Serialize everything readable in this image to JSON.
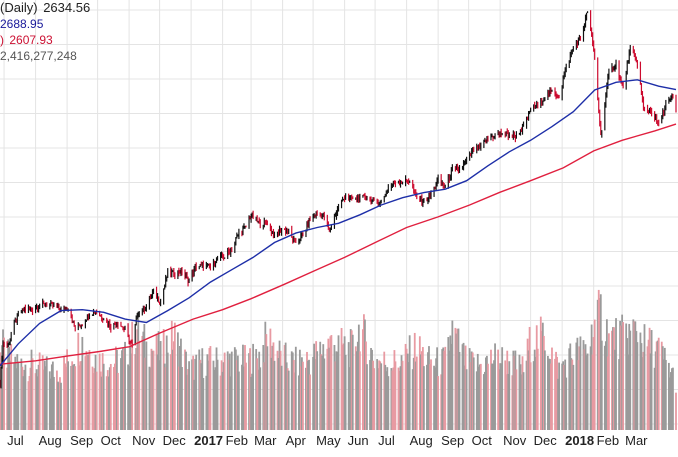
{
  "legend": {
    "price_label": "(Daily)",
    "price_value": "2634.56",
    "ma50_label": "",
    "ma50_value": "2688.95",
    "ma200_label": ")",
    "ma200_value": "2607.93",
    "volume_value": "2,416,277,248"
  },
  "colors": {
    "price_up": "#111111",
    "price_down": "#cc0a2e",
    "ma50": "#1e2fa8",
    "ma200": "#e0203f",
    "volume_up": "#9a9a9a",
    "volume_down": "#e89aa2",
    "grid": "#e4e4e4"
  },
  "chart_data": [
    {
      "type": "line",
      "title": "",
      "series": [
        {
          "name": "Daily",
          "style": "ohlc-bars",
          "points": [
            [
              "2016-06-27",
              2000
            ],
            [
              "2016-06-30",
              2092
            ],
            [
              "2016-07-05",
              2088
            ],
            [
              "2016-07-11",
              2137
            ],
            [
              "2016-07-15",
              2162
            ],
            [
              "2016-07-22",
              2175
            ],
            [
              "2016-07-29",
              2173
            ],
            [
              "2016-08-05",
              2182
            ],
            [
              "2016-08-12",
              2184
            ],
            [
              "2016-08-19",
              2183
            ],
            [
              "2016-08-26",
              2169
            ],
            [
              "2016-09-02",
              2179
            ],
            [
              "2016-09-09",
              2127
            ],
            [
              "2016-09-16",
              2139
            ],
            [
              "2016-09-23",
              2164
            ],
            [
              "2016-09-30",
              2168
            ],
            [
              "2016-10-07",
              2153
            ],
            [
              "2016-10-14",
              2133
            ],
            [
              "2016-10-21",
              2141
            ],
            [
              "2016-10-28",
              2126
            ],
            [
              "2016-11-04",
              2085
            ],
            [
              "2016-11-09",
              2163
            ],
            [
              "2016-11-18",
              2181
            ],
            [
              "2016-11-25",
              2213
            ],
            [
              "2016-12-02",
              2191
            ],
            [
              "2016-12-09",
              2259
            ],
            [
              "2016-12-16",
              2258
            ],
            [
              "2016-12-23",
              2263
            ],
            [
              "2016-12-30",
              2238
            ],
            [
              "2017-01-06",
              2276
            ],
            [
              "2017-01-13",
              2274
            ],
            [
              "2017-01-20",
              2271
            ],
            [
              "2017-01-27",
              2294
            ],
            [
              "2017-02-03",
              2297
            ],
            [
              "2017-02-10",
              2316
            ],
            [
              "2017-02-17",
              2351
            ],
            [
              "2017-02-24",
              2367
            ],
            [
              "2017-03-01",
              2395
            ],
            [
              "2017-03-10",
              2372
            ],
            [
              "2017-03-17",
              2378
            ],
            [
              "2017-03-24",
              2343
            ],
            [
              "2017-03-31",
              2362
            ],
            [
              "2017-04-07",
              2355
            ],
            [
              "2017-04-13",
              2328
            ],
            [
              "2017-04-21",
              2348
            ],
            [
              "2017-04-28",
              2384
            ],
            [
              "2017-05-05",
              2399
            ],
            [
              "2017-05-12",
              2390
            ],
            [
              "2017-05-17",
              2357
            ],
            [
              "2017-05-26",
              2415
            ],
            [
              "2017-06-02",
              2439
            ],
            [
              "2017-06-09",
              2431
            ],
            [
              "2017-06-16",
              2433
            ],
            [
              "2017-06-23",
              2438
            ],
            [
              "2017-06-30",
              2423
            ],
            [
              "2017-07-07",
              2425
            ],
            [
              "2017-07-14",
              2459
            ],
            [
              "2017-07-21",
              2472
            ],
            [
              "2017-07-28",
              2472
            ],
            [
              "2017-08-04",
              2476
            ],
            [
              "2017-08-10",
              2438
            ],
            [
              "2017-08-18",
              2425
            ],
            [
              "2017-08-25",
              2443
            ],
            [
              "2017-09-01",
              2476
            ],
            [
              "2017-09-08",
              2461
            ],
            [
              "2017-09-15",
              2500
            ],
            [
              "2017-09-22",
              2502
            ],
            [
              "2017-09-29",
              2519
            ],
            [
              "2017-10-06",
              2549
            ],
            [
              "2017-10-13",
              2553
            ],
            [
              "2017-10-20",
              2575
            ],
            [
              "2017-10-27",
              2581
            ],
            [
              "2017-11-03",
              2588
            ],
            [
              "2017-11-10",
              2582
            ],
            [
              "2017-11-17",
              2579
            ],
            [
              "2017-11-24",
              2602
            ],
            [
              "2017-12-01",
              2642
            ],
            [
              "2017-12-08",
              2651
            ],
            [
              "2017-12-15",
              2675
            ],
            [
              "2017-12-22",
              2683
            ],
            [
              "2017-12-29",
              2674
            ],
            [
              "2018-01-05",
              2743
            ],
            [
              "2018-01-12",
              2786
            ],
            [
              "2018-01-19",
              2810
            ],
            [
              "2018-01-26",
              2873
            ],
            [
              "2018-02-02",
              2762
            ],
            [
              "2018-02-08",
              2581
            ],
            [
              "2018-02-16",
              2732
            ],
            [
              "2018-02-23",
              2747
            ],
            [
              "2018-03-02",
              2691
            ],
            [
              "2018-03-09",
              2786
            ],
            [
              "2018-03-16",
              2752
            ],
            [
              "2018-03-22",
              2643
            ],
            [
              "2018-03-29",
              2641
            ],
            [
              "2018-04-06",
              2604
            ],
            [
              "2018-04-13",
              2656
            ],
            [
              "2018-04-20",
              2670
            ],
            [
              "2018-04-23",
              2634.56
            ]
          ]
        },
        {
          "name": "",
          "style": "line",
          "points": [
            [
              "2016-06-27",
              2040
            ],
            [
              "2016-07-15",
              2092
            ],
            [
              "2016-08-05",
              2140
            ],
            [
              "2016-08-26",
              2170
            ],
            [
              "2016-09-16",
              2172
            ],
            [
              "2016-10-07",
              2166
            ],
            [
              "2016-10-28",
              2150
            ],
            [
              "2016-11-18",
              2142
            ],
            [
              "2016-12-09",
              2170
            ],
            [
              "2016-12-30",
              2200
            ],
            [
              "2017-01-20",
              2237
            ],
            [
              "2017-02-10",
              2266
            ],
            [
              "2017-03-03",
              2295
            ],
            [
              "2017-03-24",
              2330
            ],
            [
              "2017-04-14",
              2352
            ],
            [
              "2017-05-05",
              2365
            ],
            [
              "2017-05-26",
              2375
            ],
            [
              "2017-06-16",
              2395
            ],
            [
              "2017-07-07",
              2418
            ],
            [
              "2017-07-28",
              2435
            ],
            [
              "2017-08-18",
              2447
            ],
            [
              "2017-09-08",
              2455
            ],
            [
              "2017-09-29",
              2475
            ],
            [
              "2017-10-20",
              2510
            ],
            [
              "2017-11-10",
              2543
            ],
            [
              "2017-12-01",
              2570
            ],
            [
              "2017-12-22",
              2602
            ],
            [
              "2018-01-12",
              2637
            ],
            [
              "2018-02-02",
              2688
            ],
            [
              "2018-02-23",
              2706
            ],
            [
              "2018-03-16",
              2712
            ],
            [
              "2018-04-06",
              2697
            ],
            [
              "2018-04-23",
              2688.95
            ]
          ]
        },
        {
          "name": "",
          "style": "line",
          "points": [
            [
              "2016-06-27",
              2044
            ],
            [
              "2016-08-01",
              2052
            ],
            [
              "2016-09-01",
              2063
            ],
            [
              "2016-10-03",
              2074
            ],
            [
              "2016-11-01",
              2085
            ],
            [
              "2016-12-01",
              2117
            ],
            [
              "2017-01-03",
              2150
            ],
            [
              "2017-02-01",
              2172
            ],
            [
              "2017-03-01",
              2198
            ],
            [
              "2017-04-03",
              2232
            ],
            [
              "2017-05-01",
              2262
            ],
            [
              "2017-06-01",
              2295
            ],
            [
              "2017-07-03",
              2332
            ],
            [
              "2017-08-01",
              2365
            ],
            [
              "2017-09-01",
              2390
            ],
            [
              "2017-10-02",
              2418
            ],
            [
              "2017-11-01",
              2448
            ],
            [
              "2017-12-01",
              2475
            ],
            [
              "2018-01-02",
              2505
            ],
            [
              "2018-02-01",
              2545
            ],
            [
              "2018-03-01",
              2570
            ],
            [
              "2018-04-02",
              2592
            ],
            [
              "2018-04-23",
              2607.93
            ]
          ]
        }
      ],
      "x_start": "2016-06-27",
      "x_end": "2018-04-23",
      "ylim": [
        1960,
        2890
      ],
      "xticks": [
        {
          "label": "Jul",
          "date": "2016-07-01"
        },
        {
          "label": "Aug",
          "date": "2016-08-01"
        },
        {
          "label": "Sep",
          "date": "2016-09-01"
        },
        {
          "label": "Oct",
          "date": "2016-10-01"
        },
        {
          "label": "Nov",
          "date": "2016-11-01"
        },
        {
          "label": "Dec",
          "date": "2016-12-01"
        },
        {
          "label": "2017",
          "date": "2017-01-01",
          "bold": true
        },
        {
          "label": "Feb",
          "date": "2017-02-01"
        },
        {
          "label": "Mar",
          "date": "2017-03-01"
        },
        {
          "label": "Apr",
          "date": "2017-04-01"
        },
        {
          "label": "May",
          "date": "2017-05-01"
        },
        {
          "label": "Jun",
          "date": "2017-06-01"
        },
        {
          "label": "Jul",
          "date": "2017-07-01"
        },
        {
          "label": "Aug",
          "date": "2017-08-01"
        },
        {
          "label": "Sep",
          "date": "2017-09-01"
        },
        {
          "label": "Oct",
          "date": "2017-10-01"
        },
        {
          "label": "Nov",
          "date": "2017-11-01"
        },
        {
          "label": "Dec",
          "date": "2017-12-01"
        },
        {
          "label": "2018",
          "date": "2018-01-01",
          "bold": true
        },
        {
          "label": "Feb",
          "date": "2018-02-01"
        },
        {
          "label": "Mar",
          "date": "2018-03-01"
        }
      ],
      "grid": true,
      "legend_placement": "top-left"
    },
    {
      "type": "bar",
      "title": "",
      "series": [
        {
          "name": "",
          "points": [
            [
              "2016-06-27",
              4.3
            ],
            [
              "2016-07-05",
              3.6
            ],
            [
              "2016-07-15",
              3.3
            ],
            [
              "2016-07-29",
              3.2
            ],
            [
              "2016-08-12",
              3.0
            ],
            [
              "2016-08-26",
              2.9
            ],
            [
              "2016-09-09",
              4.0
            ],
            [
              "2016-09-16",
              4.4
            ],
            [
              "2016-09-30",
              3.5
            ],
            [
              "2016-10-14",
              3.3
            ],
            [
              "2016-10-28",
              3.6
            ],
            [
              "2016-11-09",
              5.0
            ],
            [
              "2016-11-18",
              4.1
            ],
            [
              "2016-12-02",
              3.9
            ],
            [
              "2016-12-16",
              4.6
            ],
            [
              "2016-12-30",
              3.0
            ],
            [
              "2017-01-13",
              3.4
            ],
            [
              "2017-01-27",
              3.4
            ],
            [
              "2017-02-10",
              3.5
            ],
            [
              "2017-02-24",
              3.4
            ],
            [
              "2017-03-10",
              3.7
            ],
            [
              "2017-03-17",
              4.6
            ],
            [
              "2017-03-31",
              3.6
            ],
            [
              "2017-04-13",
              3.3
            ],
            [
              "2017-04-28",
              3.5
            ],
            [
              "2017-05-17",
              4.3
            ],
            [
              "2017-06-09",
              4.0
            ],
            [
              "2017-06-16",
              5.1
            ],
            [
              "2017-06-30",
              3.5
            ],
            [
              "2017-07-14",
              3.3
            ],
            [
              "2017-07-28",
              3.4
            ],
            [
              "2017-08-10",
              4.1
            ],
            [
              "2017-08-25",
              3.3
            ],
            [
              "2017-09-08",
              3.4
            ],
            [
              "2017-09-15",
              4.9
            ],
            [
              "2017-09-29",
              3.3
            ],
            [
              "2017-10-13",
              3.2
            ],
            [
              "2017-10-27",
              3.6
            ],
            [
              "2017-11-10",
              3.4
            ],
            [
              "2017-11-24",
              3.0
            ],
            [
              "2017-12-01",
              4.4
            ],
            [
              "2017-12-15",
              4.6
            ],
            [
              "2017-12-29",
              3.0
            ],
            [
              "2018-01-12",
              3.8
            ],
            [
              "2018-01-26",
              4.0
            ],
            [
              "2018-02-02",
              5.2
            ],
            [
              "2018-02-08",
              5.8
            ],
            [
              "2018-02-16",
              4.6
            ],
            [
              "2018-03-02",
              4.6
            ],
            [
              "2018-03-16",
              5.0
            ],
            [
              "2018-03-22",
              4.3
            ],
            [
              "2018-04-06",
              4.0
            ],
            [
              "2018-04-23",
              2.416
            ]
          ]
        }
      ],
      "ylim": [
        0,
        6.2
      ]
    }
  ]
}
